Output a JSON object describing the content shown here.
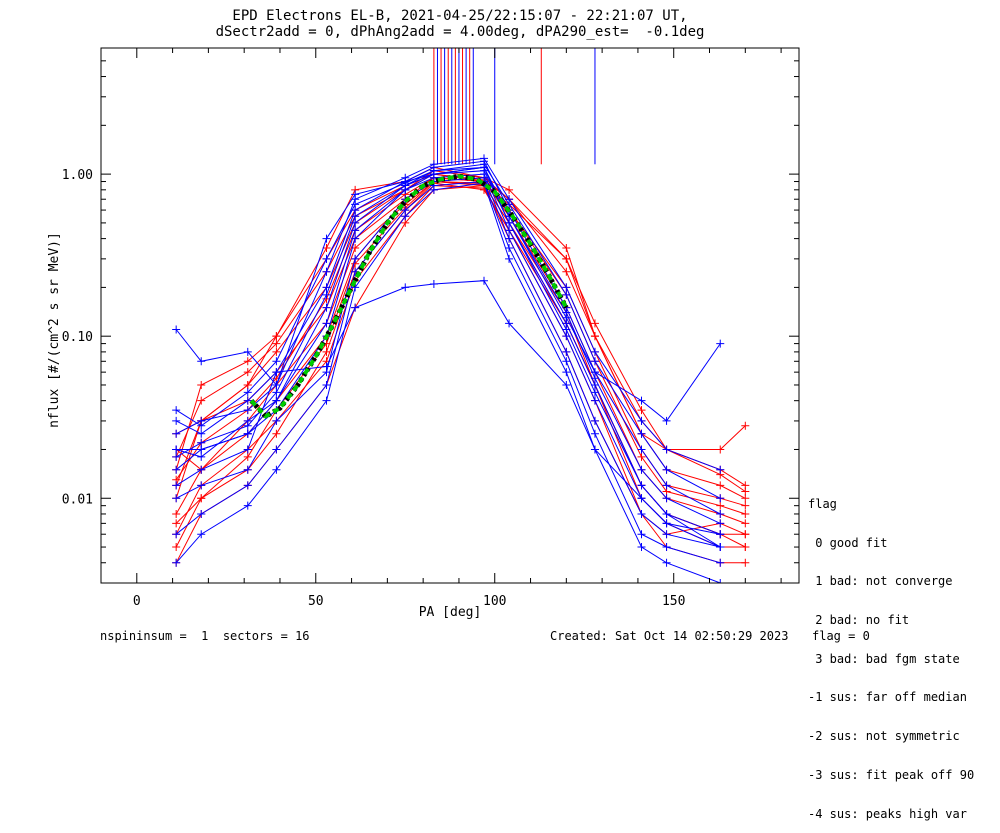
{
  "title": {
    "line1": "EPD Electrons EL-B, 2021-04-25/22:15:07 - 22:21:07 UT,",
    "line2": "dSectr2add = 0, dPhAng2add = 4.00deg, dPA290_est=  -0.1deg"
  },
  "legend": {
    "heading": "flag",
    "items": [
      " 0 good fit",
      " 1 bad: not converge",
      " 2 bad: no fit",
      " 3 bad: bad fgm state",
      "-1 sus: far off median",
      "-2 sus: not symmetric",
      "-3 sus: fit peak off 90",
      "-4 sus: peaks high var"
    ]
  },
  "footer": {
    "left": "nspininsum =  1  sectors = 16",
    "created": "Created: Sat Oct 14 02:50:29 2023",
    "flag": "flag = 0"
  },
  "colors": {
    "red_series": "#ff0000",
    "blue_series": "#0000ff",
    "fit_curve": "#00cc00",
    "fit_shadow": "#000000"
  },
  "chart_data": {
    "type": "line",
    "xlabel": "PA [deg]",
    "ylabel": "nflux [#/(cm^2 s sr MeV)]",
    "xlim": [
      -10,
      185
    ],
    "ylim": [
      0.003,
      6.0
    ],
    "yscale": "log",
    "x_ticks": [
      0,
      50,
      100,
      150
    ],
    "y_ticks": [
      0.01,
      0.1,
      1.0
    ],
    "y_tick_labels": [
      "0.01",
      "0.10",
      "1.00"
    ],
    "pitch_angles": [
      11,
      18,
      31,
      39,
      53,
      61,
      75,
      83,
      97,
      104,
      120,
      128,
      141,
      148,
      163,
      170
    ],
    "series_groups": [
      {
        "color": "red",
        "spins": [
          [
            0.006,
            0.012,
            0.02,
            0.03,
            0.07,
            0.22,
            0.55,
            0.85,
            0.82,
            0.45,
            0.12,
            0.05,
            0.012,
            0.008,
            0.006,
            0.005
          ],
          [
            0.008,
            0.015,
            0.025,
            0.04,
            0.1,
            0.3,
            0.7,
            0.95,
            0.9,
            0.55,
            0.15,
            0.06,
            0.015,
            0.01,
            0.008,
            0.007
          ],
          [
            0.012,
            0.03,
            0.05,
            0.08,
            0.2,
            0.5,
            0.8,
            1.05,
            0.95,
            0.7,
            0.25,
            0.1,
            0.025,
            0.015,
            0.012,
            0.01
          ],
          [
            0.015,
            0.05,
            0.07,
            0.1,
            0.3,
            0.6,
            0.85,
            1.0,
            0.9,
            0.6,
            0.2,
            0.08,
            0.02,
            0.012,
            0.01,
            0.009
          ],
          [
            0.01,
            0.03,
            0.04,
            0.06,
            0.15,
            0.4,
            0.7,
            0.9,
            0.85,
            0.5,
            0.12,
            0.05,
            0.01,
            0.007,
            0.005,
            0.005
          ],
          [
            0.02,
            0.015,
            0.03,
            0.05,
            0.12,
            0.35,
            0.65,
            0.9,
            0.88,
            0.65,
            0.3,
            0.1,
            0.03,
            0.02,
            0.015,
            0.012
          ],
          [
            0.004,
            0.008,
            0.012,
            0.02,
            0.05,
            0.15,
            0.5,
            0.8,
            0.85,
            0.4,
            0.08,
            0.03,
            0.008,
            0.005,
            0.004,
            0.004
          ],
          [
            0.025,
            0.03,
            0.05,
            0.1,
            0.35,
            0.8,
            0.9,
            1.1,
            0.95,
            0.8,
            0.35,
            0.1,
            0.025,
            0.02,
            0.02,
            0.028
          ],
          [
            0.007,
            0.01,
            0.015,
            0.025,
            0.08,
            0.25,
            0.6,
            0.88,
            0.8,
            0.45,
            0.1,
            0.04,
            0.008,
            0.006,
            0.007,
            0.006
          ],
          [
            0.013,
            0.022,
            0.035,
            0.055,
            0.17,
            0.45,
            0.75,
            0.95,
            0.9,
            0.6,
            0.18,
            0.07,
            0.018,
            0.011,
            0.009,
            0.008
          ],
          [
            0.005,
            0.01,
            0.018,
            0.035,
            0.09,
            0.28,
            0.62,
            0.9,
            0.86,
            0.5,
            0.14,
            0.05,
            0.012,
            0.008,
            0.006,
            0.006
          ],
          [
            0.018,
            0.04,
            0.06,
            0.09,
            0.25,
            0.55,
            0.8,
            1.0,
            0.92,
            0.7,
            0.3,
            0.12,
            0.035,
            0.02,
            0.014,
            0.011
          ]
        ]
      },
      {
        "color": "blue",
        "spins": [
          [
            0.02,
            0.018,
            0.03,
            0.04,
            0.15,
            0.5,
            0.85,
            1.0,
            1.1,
            0.5,
            0.12,
            0.05,
            0.012,
            0.008,
            0.005,
            null
          ],
          [
            0.03,
            0.025,
            0.04,
            0.06,
            0.2,
            0.6,
            0.9,
            1.1,
            1.2,
            0.6,
            0.15,
            0.06,
            0.02,
            0.012,
            0.008,
            null
          ],
          [
            0.015,
            0.02,
            0.025,
            0.035,
            0.1,
            0.4,
            0.8,
            0.95,
            1.0,
            0.45,
            0.1,
            0.04,
            0.01,
            0.007,
            0.006,
            null
          ],
          [
            0.01,
            0.012,
            0.015,
            0.03,
            0.06,
            0.3,
            0.7,
            0.9,
            0.95,
            0.4,
            0.08,
            0.03,
            0.008,
            0.006,
            0.005,
            null
          ],
          [
            0.025,
            0.03,
            0.035,
            0.05,
            0.25,
            0.7,
            0.95,
            1.15,
            1.25,
            0.7,
            0.2,
            0.08,
            0.03,
            0.02,
            0.015,
            null
          ],
          [
            0.006,
            0.008,
            0.012,
            0.02,
            0.05,
            0.25,
            0.6,
            0.85,
            0.9,
            0.35,
            0.07,
            0.025,
            0.006,
            0.005,
            0.004,
            null
          ],
          [
            0.11,
            0.07,
            0.08,
            0.05,
            0.4,
            0.75,
            0.9,
            1.0,
            1.1,
            0.55,
            0.13,
            0.06,
            0.04,
            0.03,
            0.09,
            null
          ],
          [
            0.02,
            0.02,
            0.025,
            0.04,
            0.12,
            0.45,
            0.8,
            1.0,
            1.05,
            0.5,
            0.11,
            0.045,
            0.012,
            0.008,
            0.006,
            null
          ],
          [
            0.035,
            0.028,
            0.045,
            0.07,
            0.3,
            0.65,
            0.88,
            1.05,
            1.15,
            0.65,
            0.18,
            0.07,
            0.025,
            0.015,
            0.01,
            null
          ],
          [
            0.004,
            0.006,
            0.009,
            0.015,
            0.04,
            0.2,
            0.55,
            0.8,
            0.88,
            0.3,
            0.06,
            0.02,
            0.005,
            0.004,
            0.003,
            null
          ],
          [
            0.018,
            0.022,
            0.028,
            0.045,
            0.18,
            0.55,
            0.85,
            1.05,
            1.1,
            0.55,
            0.14,
            0.055,
            0.015,
            0.01,
            0.007,
            null
          ],
          [
            0.012,
            0.015,
            0.02,
            0.06,
            0.065,
            0.15,
            0.2,
            0.21,
            0.22,
            0.12,
            0.05,
            0.02,
            0.01,
            0.007,
            0.005,
            null
          ]
        ]
      }
    ],
    "spikes": [
      {
        "x": 83,
        "color": "red"
      },
      {
        "x": 84,
        "color": "blue"
      },
      {
        "x": 85,
        "color": "red"
      },
      {
        "x": 86,
        "color": "blue"
      },
      {
        "x": 87,
        "color": "red"
      },
      {
        "x": 88,
        "color": "blue"
      },
      {
        "x": 89,
        "color": "red"
      },
      {
        "x": 90,
        "color": "blue"
      },
      {
        "x": 91,
        "color": "red"
      },
      {
        "x": 92,
        "color": "blue"
      },
      {
        "x": 93,
        "color": "red"
      },
      {
        "x": 94,
        "color": "blue"
      },
      {
        "x": 100,
        "color": "blue"
      },
      {
        "x": 113,
        "color": "red"
      },
      {
        "x": 128,
        "color": "blue"
      }
    ],
    "fit_curve": {
      "x": [
        32,
        36,
        40,
        45,
        50,
        55,
        60,
        65,
        70,
        75,
        80,
        85,
        90,
        95,
        100,
        105,
        110,
        115,
        120
      ],
      "y": [
        0.04,
        0.032,
        0.036,
        0.05,
        0.075,
        0.12,
        0.2,
        0.33,
        0.5,
        0.68,
        0.85,
        0.93,
        0.97,
        0.93,
        0.78,
        0.55,
        0.37,
        0.24,
        0.15
      ]
    }
  }
}
